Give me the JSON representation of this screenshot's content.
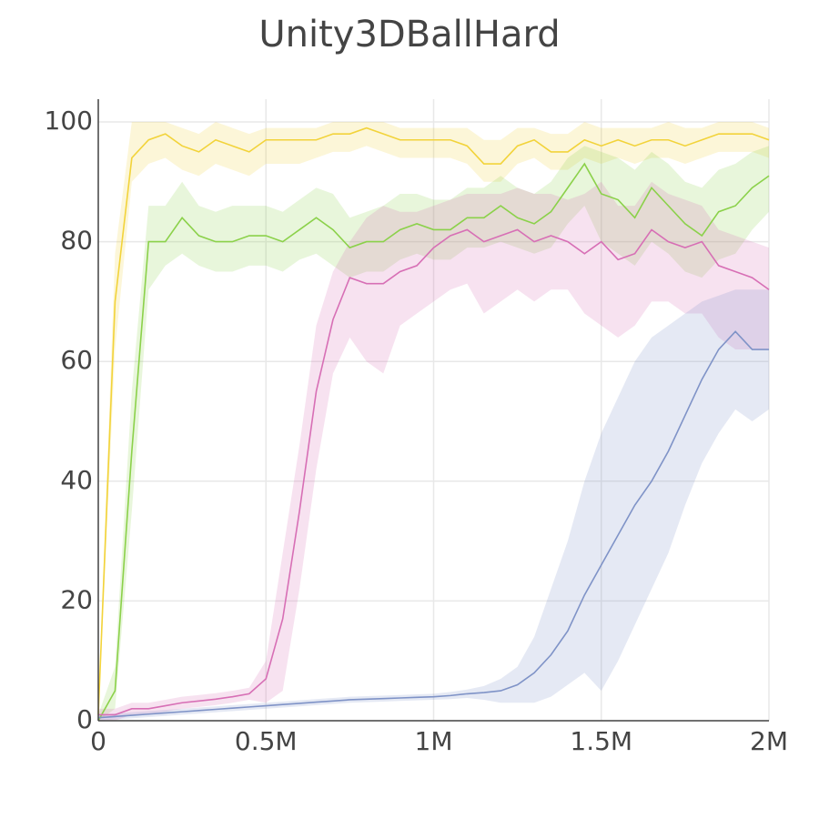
{
  "chart_data": {
    "type": "line",
    "title": "Unity3DBallHard",
    "x": [
      0,
      50000,
      100000,
      150000,
      200000,
      250000,
      300000,
      350000,
      400000,
      450000,
      500000,
      550000,
      600000,
      650000,
      700000,
      750000,
      800000,
      850000,
      900000,
      950000,
      1000000,
      1050000,
      1100000,
      1150000,
      1200000,
      1250000,
      1300000,
      1350000,
      1400000,
      1450000,
      1500000,
      1550000,
      1600000,
      1650000,
      1700000,
      1750000,
      1800000,
      1850000,
      1900000,
      1950000,
      2000000
    ],
    "xlim": [
      0,
      2000000
    ],
    "xticks": [
      0,
      {
        "value": 500000,
        "label": "0.5M"
      },
      {
        "value": 1000000,
        "label": "1M"
      },
      {
        "value": 1500000,
        "label": "1.5M"
      },
      {
        "value": 2000000,
        "label": "2M"
      }
    ],
    "ylim": [
      0,
      100
    ],
    "yticks": [
      0,
      20,
      40,
      60,
      80,
      100
    ],
    "grid": true,
    "series": [
      {
        "color": "#f2d33a",
        "values": [
          1,
          70,
          94,
          97,
          98,
          96,
          95,
          97,
          96,
          95,
          97,
          97,
          97,
          97,
          98,
          98,
          99,
          98,
          97,
          97,
          97,
          97,
          96,
          93,
          93,
          96,
          97,
          95,
          95,
          97,
          96,
          97,
          96,
          97,
          97,
          96,
          97,
          98,
          98,
          98,
          97
        ],
        "lower": [
          0,
          62,
          90,
          93,
          94,
          92,
          91,
          93,
          92,
          91,
          93,
          93,
          93,
          94,
          95,
          95,
          96,
          95,
          94,
          94,
          94,
          94,
          93,
          90,
          90,
          93,
          94,
          92,
          92,
          94,
          93,
          94,
          93,
          94,
          94,
          93,
          94,
          95,
          95,
          95,
          94
        ],
        "upper": [
          2,
          78,
          100,
          100,
          100,
          99,
          98,
          100,
          99,
          98,
          99,
          99,
          99,
          99,
          100,
          100,
          100,
          100,
          99,
          99,
          99,
          99,
          99,
          97,
          97,
          99,
          99,
          98,
          98,
          100,
          99,
          99,
          99,
          99,
          100,
          99,
          99,
          100,
          100,
          100,
          99
        ]
      },
      {
        "color": "#8bd14a",
        "values": [
          0,
          5,
          45,
          80,
          80,
          84,
          81,
          80,
          80,
          81,
          81,
          80,
          82,
          84,
          82,
          79,
          80,
          80,
          82,
          83,
          82,
          82,
          84,
          84,
          86,
          84,
          83,
          85,
          89,
          93,
          88,
          87,
          84,
          89,
          86,
          83,
          81,
          85,
          86,
          89,
          91
        ],
        "lower": [
          0,
          2,
          35,
          72,
          76,
          78,
          76,
          75,
          75,
          76,
          76,
          75,
          77,
          78,
          76,
          74,
          75,
          75,
          77,
          78,
          77,
          77,
          79,
          79,
          80,
          79,
          78,
          79,
          83,
          86,
          80,
          78,
          76,
          80,
          78,
          75,
          74,
          77,
          78,
          82,
          85
        ],
        "upper": [
          1,
          9,
          55,
          86,
          86,
          90,
          86,
          85,
          86,
          86,
          86,
          85,
          87,
          89,
          88,
          84,
          85,
          86,
          88,
          88,
          87,
          87,
          89,
          89,
          91,
          89,
          88,
          90,
          94,
          96,
          95,
          94,
          92,
          95,
          93,
          90,
          89,
          92,
          93,
          95,
          96
        ]
      },
      {
        "color": "#d76fb5",
        "values": [
          1,
          1,
          2,
          2,
          2.5,
          3,
          3.3,
          3.6,
          4,
          4.5,
          7,
          17,
          35,
          55,
          67,
          74,
          73,
          73,
          75,
          76,
          79,
          81,
          82,
          80,
          81,
          82,
          80,
          81,
          80,
          78,
          80,
          77,
          78,
          82,
          80,
          79,
          80,
          76,
          75,
          74,
          72
        ],
        "lower": [
          0,
          0,
          1,
          1,
          1.5,
          2,
          2.3,
          2.6,
          3,
          3.5,
          3,
          5,
          22,
          42,
          58,
          64,
          60,
          58,
          66,
          68,
          70,
          72,
          73,
          68,
          70,
          72,
          70,
          72,
          72,
          68,
          66,
          64,
          66,
          70,
          70,
          68,
          68,
          64,
          62,
          62,
          62
        ],
        "upper": [
          2,
          2,
          3,
          3,
          3.5,
          4,
          4.3,
          4.6,
          5,
          5.5,
          10,
          28,
          46,
          66,
          75,
          80,
          84,
          86,
          85,
          85,
          86,
          87,
          88,
          88,
          88,
          89,
          88,
          88,
          87,
          88,
          90,
          86,
          86,
          90,
          88,
          87,
          86,
          82,
          81,
          80,
          79
        ]
      },
      {
        "color": "#7f93c7",
        "values": [
          0.5,
          0.7,
          0.9,
          1.1,
          1.3,
          1.5,
          1.7,
          1.9,
          2.1,
          2.3,
          2.5,
          2.7,
          2.9,
          3.1,
          3.3,
          3.5,
          3.6,
          3.7,
          3.8,
          3.9,
          4,
          4.2,
          4.5,
          4.7,
          5,
          6,
          8,
          11,
          15,
          21,
          26,
          31,
          36,
          40,
          45,
          51,
          57,
          62,
          65,
          62,
          62
        ],
        "lower": [
          0,
          0.2,
          0.4,
          0.6,
          0.8,
          1,
          1.2,
          1.4,
          1.6,
          1.8,
          2,
          2.2,
          2.4,
          2.6,
          2.8,
          3,
          3.1,
          3.2,
          3.3,
          3.4,
          3.5,
          3.6,
          3.8,
          3.5,
          3,
          3,
          3,
          4,
          6,
          8,
          5,
          10,
          16,
          22,
          28,
          36,
          43,
          48,
          52,
          50,
          52
        ],
        "upper": [
          1,
          1.2,
          1.4,
          1.6,
          1.8,
          2,
          2.2,
          2.4,
          2.6,
          2.8,
          3,
          3.2,
          3.4,
          3.6,
          3.8,
          4,
          4.1,
          4.2,
          4.3,
          4.4,
          4.5,
          4.8,
          5.2,
          5.8,
          7,
          9,
          14,
          22,
          30,
          40,
          48,
          54,
          60,
          64,
          66,
          68,
          70,
          71,
          72,
          72,
          72
        ]
      }
    ]
  }
}
